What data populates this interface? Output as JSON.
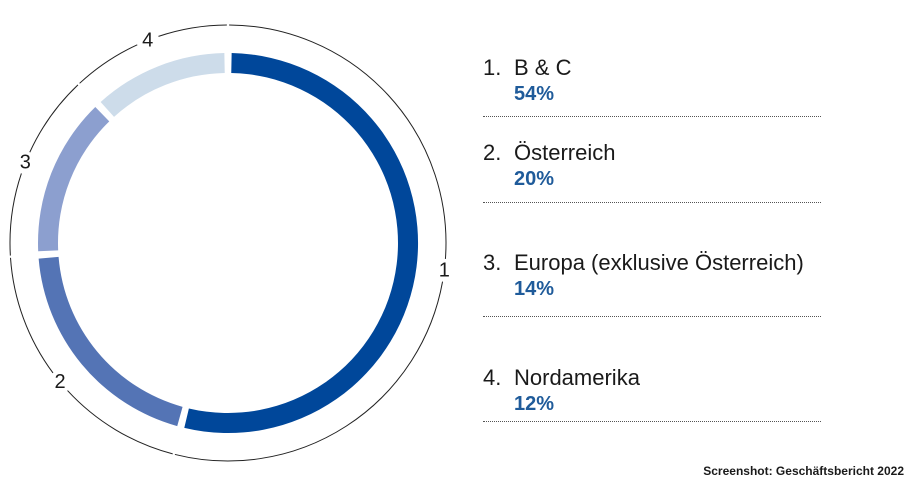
{
  "chart_data": {
    "type": "pie",
    "variant": "donut",
    "categories": [
      "B & C",
      "Österreich",
      "Europa (exklusive Österreich)",
      "Nordamerika"
    ],
    "values": [
      54,
      20,
      14,
      12
    ],
    "unit": "%",
    "colors": [
      "#00479a",
      "#5474b5",
      "#8c9fcf",
      "#cddcea"
    ],
    "ring_labels": [
      "1",
      "2",
      "3",
      "4"
    ],
    "legend": [
      {
        "number": "1.",
        "label": "B & C",
        "value": "54%"
      },
      {
        "number": "2.",
        "label": "Österreich",
        "value": "20%"
      },
      {
        "number": "3.",
        "label": "Europa (exklusive Österreich)",
        "value": "14%"
      },
      {
        "number": "4.",
        "label": "Nordamerika",
        "value": "12%"
      }
    ],
    "legend_value_color": "#1f5b9a",
    "legend_placement": "right"
  },
  "source": "Screenshot: Geschäftsbericht 2022"
}
